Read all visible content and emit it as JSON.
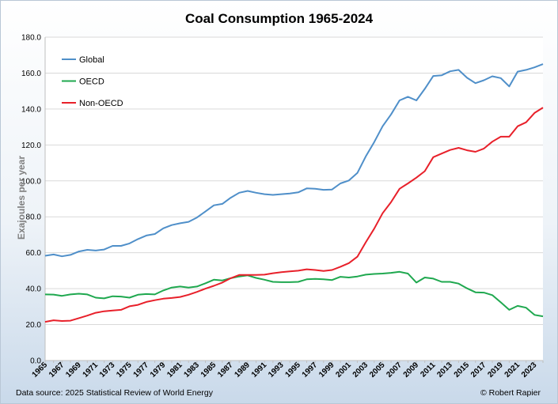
{
  "chart_data": {
    "type": "line",
    "title": "Coal Consumption 1965-2024",
    "xlabel": "",
    "ylabel": "Exajoules per year",
    "ylim": [
      0,
      180
    ],
    "y_ticks": [
      "0.0",
      "20.0",
      "40.0",
      "60.0",
      "80.0",
      "100.0",
      "120.0",
      "140.0",
      "160.0",
      "180.0"
    ],
    "x_ticks": [
      1965,
      1967,
      1969,
      1971,
      1973,
      1975,
      1977,
      1979,
      1981,
      1983,
      1985,
      1987,
      1989,
      1991,
      1993,
      1995,
      1997,
      1999,
      2001,
      2003,
      2005,
      2007,
      2009,
      2011,
      2013,
      2015,
      2017,
      2019,
      2021,
      2023
    ],
    "x": [
      1965,
      1966,
      1967,
      1968,
      1969,
      1970,
      1971,
      1972,
      1973,
      1974,
      1975,
      1976,
      1977,
      1978,
      1979,
      1980,
      1981,
      1982,
      1983,
      1984,
      1985,
      1986,
      1987,
      1988,
      1989,
      1990,
      1991,
      1992,
      1993,
      1994,
      1995,
      1996,
      1997,
      1998,
      1999,
      2000,
      2001,
      2002,
      2003,
      2004,
      2005,
      2006,
      2007,
      2008,
      2009,
      2010,
      2011,
      2012,
      2013,
      2014,
      2015,
      2016,
      2017,
      2018,
      2019,
      2020,
      2021,
      2022,
      2023,
      2024
    ],
    "legend_position": "top-left",
    "grid": "horizontal",
    "series": [
      {
        "name": "Global",
        "color": "#4f8fc9",
        "values": [
          58.3,
          59.0,
          58.0,
          58.8,
          60.7,
          61.6,
          61.2,
          61.8,
          63.8,
          63.8,
          65.2,
          67.6,
          69.6,
          70.4,
          73.6,
          75.4,
          76.4,
          77.2,
          79.6,
          83.0,
          86.4,
          87.2,
          90.6,
          93.4,
          94.4,
          93.4,
          92.6,
          92.2,
          92.6,
          93.0,
          93.6,
          95.8,
          95.6,
          95.0,
          95.2,
          98.6,
          100.2,
          104.4,
          113.6,
          121.6,
          130.4,
          137.0,
          144.8,
          146.8,
          144.8,
          151.2,
          158.4,
          158.8,
          161.0,
          161.8,
          157.4,
          154.4,
          156.0,
          158.2,
          157.2,
          152.6,
          160.8,
          161.8,
          163.2,
          165.0
        ]
      },
      {
        "name": "OECD",
        "color": "#1fa84f",
        "values": [
          36.8,
          36.7,
          36.0,
          36.8,
          37.2,
          36.8,
          35.0,
          34.6,
          35.8,
          35.6,
          35.0,
          36.6,
          37.0,
          36.8,
          39.0,
          40.6,
          41.2,
          40.6,
          41.2,
          43.0,
          45.0,
          44.6,
          45.8,
          46.8,
          47.4,
          46.0,
          45.0,
          43.8,
          43.6,
          43.6,
          43.8,
          45.2,
          45.4,
          45.2,
          44.8,
          46.6,
          46.2,
          46.8,
          47.8,
          48.2,
          48.4,
          48.8,
          49.4,
          48.4,
          43.4,
          46.2,
          45.6,
          43.8,
          43.8,
          42.8,
          40.2,
          38.0,
          37.8,
          36.4,
          32.4,
          28.2,
          30.4,
          29.4,
          25.4,
          24.6
        ]
      },
      {
        "name": "Non-OECD",
        "color": "#e8202a",
        "values": [
          21.5,
          22.4,
          22.0,
          22.2,
          23.6,
          25.0,
          26.6,
          27.4,
          27.8,
          28.2,
          30.2,
          31.0,
          32.6,
          33.6,
          34.4,
          34.8,
          35.4,
          36.6,
          38.2,
          40.0,
          41.6,
          43.4,
          45.8,
          47.6,
          47.6,
          47.6,
          47.8,
          48.6,
          49.2,
          49.6,
          50.0,
          50.8,
          50.4,
          49.8,
          50.4,
          52.2,
          54.2,
          57.8,
          65.8,
          73.4,
          82.0,
          88.2,
          95.6,
          98.6,
          101.8,
          105.4,
          113.2,
          115.2,
          117.2,
          118.4,
          117.0,
          116.2,
          118.0,
          121.8,
          124.6,
          124.6,
          130.4,
          132.6,
          137.8,
          140.8
        ]
      }
    ]
  },
  "footer": {
    "source": "Data source: 2025 Statistical Review of World Energy",
    "credit": "© Robert Rapier"
  }
}
